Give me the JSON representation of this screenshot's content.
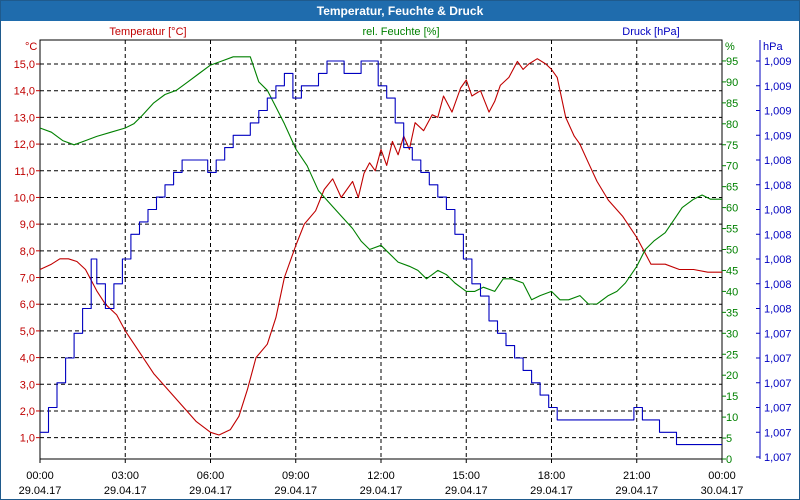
{
  "window": {
    "title": "Temperatur, Feuchte & Druck"
  },
  "chart_data": {
    "type": "line",
    "title": "Temperatur, Feuchte & Druck",
    "colors": {
      "temperature": "#c00000",
      "humidity": "#008000",
      "pressure": "#0000c0"
    },
    "axes": {
      "left": {
        "unit": "°C",
        "label": "Temperatur [°C]",
        "range": [
          0.2,
          15.9
        ],
        "ticks": [
          "1,0",
          "2,0",
          "3,0",
          "4,0",
          "5,0",
          "6,0",
          "7,0",
          "8,0",
          "9,0",
          "10,0",
          "11,0",
          "12,0",
          "13,0",
          "14,0",
          "15,0"
        ]
      },
      "right_humidity": {
        "unit": "%",
        "label": "rel. Feuchte [%]",
        "range": [
          0,
          100
        ],
        "ticks": [
          "0",
          "5",
          "10",
          "15",
          "20",
          "25",
          "30",
          "35",
          "40",
          "45",
          "50",
          "55",
          "60",
          "65",
          "70",
          "75",
          "80",
          "85",
          "90",
          "95"
        ]
      },
      "right_pressure": {
        "unit": "hPa",
        "label": "Druck [hPa]",
        "ticks": [
          "1,007",
          "1,007",
          "1,007",
          "1,007",
          "1,007",
          "1,007",
          "1,008",
          "1,008",
          "1,008",
          "1,008",
          "1,008",
          "1,008",
          "1,008",
          "1,009",
          "1,009",
          "1,009",
          "1,009"
        ]
      },
      "x": {
        "range": [
          0,
          24
        ],
        "ticks": [
          {
            "time": "00:00",
            "date": "29.04.17"
          },
          {
            "time": "03:00",
            "date": "29.04.17"
          },
          {
            "time": "06:00",
            "date": "29.04.17"
          },
          {
            "time": "09:00",
            "date": "29.04.17"
          },
          {
            "time": "12:00",
            "date": "29.04.17"
          },
          {
            "time": "15:00",
            "date": "29.04.17"
          },
          {
            "time": "18:00",
            "date": "29.04.17"
          },
          {
            "time": "21:00",
            "date": "29.04.17"
          },
          {
            "time": "00:00",
            "date": "30.04.17"
          }
        ]
      }
    },
    "series": [
      {
        "name": "Temperatur [°C]",
        "axis": "left",
        "color": "#c00000",
        "x": [
          0,
          0.4,
          0.7,
          1.0,
          1.3,
          1.6,
          2.0,
          2.3,
          2.7,
          3.0,
          3.5,
          4.0,
          4.5,
          5.0,
          5.5,
          6.0,
          6.3,
          6.7,
          7.0,
          7.3,
          7.6,
          8.0,
          8.3,
          8.6,
          9.0,
          9.3,
          9.7,
          10.0,
          10.3,
          10.6,
          11.0,
          11.2,
          11.4,
          11.6,
          11.8,
          12.0,
          12.2,
          12.4,
          12.6,
          12.8,
          13.0,
          13.2,
          13.5,
          13.8,
          14.0,
          14.2,
          14.5,
          14.8,
          15.0,
          15.2,
          15.5,
          15.8,
          16.0,
          16.2,
          16.5,
          16.8,
          17.0,
          17.2,
          17.5,
          17.8,
          18.0,
          18.2,
          18.5,
          18.8,
          19.0,
          19.3,
          19.6,
          20.0,
          20.5,
          21.0,
          21.5,
          22.0,
          22.5,
          23.0,
          23.5,
          24.0
        ],
        "y": [
          7.3,
          7.5,
          7.7,
          7.7,
          7.6,
          7.3,
          6.5,
          6.0,
          5.6,
          5.0,
          4.2,
          3.4,
          2.8,
          2.2,
          1.6,
          1.2,
          1.1,
          1.3,
          1.8,
          2.8,
          4.0,
          4.5,
          5.5,
          7.0,
          8.2,
          9.0,
          9.5,
          10.3,
          10.7,
          10.0,
          10.6,
          10.0,
          10.9,
          11.3,
          11.0,
          11.8,
          11.2,
          12.1,
          11.6,
          12.3,
          11.8,
          12.8,
          12.5,
          13.1,
          13.0,
          13.8,
          13.2,
          14.1,
          14.4,
          13.8,
          14.0,
          13.2,
          13.6,
          14.2,
          14.5,
          15.1,
          14.8,
          15.0,
          15.2,
          15.0,
          14.8,
          14.5,
          13.0,
          12.3,
          12.0,
          11.3,
          10.6,
          9.9,
          9.3,
          8.5,
          7.5,
          7.5,
          7.3,
          7.3,
          7.2,
          7.2
        ]
      },
      {
        "name": "rel. Feuchte [%]",
        "axis": "right_humidity",
        "color": "#008000",
        "x": [
          0,
          0.4,
          0.8,
          1.2,
          1.6,
          2.0,
          2.5,
          3.0,
          3.3,
          3.6,
          4.0,
          4.4,
          4.8,
          5.2,
          5.6,
          6.0,
          6.4,
          6.8,
          7.1,
          7.4,
          7.7,
          8.0,
          8.3,
          8.6,
          9.0,
          9.4,
          9.8,
          10.2,
          10.6,
          11.0,
          11.3,
          11.6,
          12.0,
          12.3,
          12.6,
          13.0,
          13.3,
          13.6,
          14.0,
          14.3,
          14.6,
          15.0,
          15.3,
          15.6,
          16.0,
          16.3,
          16.6,
          17.0,
          17.3,
          17.6,
          18.0,
          18.3,
          18.6,
          19.0,
          19.3,
          19.6,
          20.0,
          20.3,
          20.6,
          21.0,
          21.3,
          21.6,
          22.0,
          22.3,
          22.6,
          23.0,
          23.3,
          23.6,
          24.0
        ],
        "y": [
          79,
          78,
          76,
          75,
          76,
          77,
          78,
          79,
          80,
          82,
          85,
          87,
          88,
          90,
          92,
          94,
          95,
          96,
          96,
          96,
          90,
          88,
          84,
          80,
          74,
          70,
          64,
          61,
          58,
          55,
          52,
          50,
          51,
          49,
          47,
          46,
          45,
          43,
          45,
          44,
          42,
          40,
          40,
          41,
          40,
          43,
          43,
          42,
          38,
          39,
          40,
          38,
          38,
          39,
          37,
          37,
          39,
          40,
          42,
          46,
          50,
          52,
          54,
          57,
          60,
          62,
          63,
          62,
          62
        ]
      },
      {
        "name": "Druck [hPa]",
        "axis": "right_pressure",
        "color": "#0000c0",
        "x": [
          0,
          0.3,
          0.6,
          0.9,
          1.2,
          1.5,
          1.8,
          2.0,
          2.3,
          2.6,
          2.9,
          3.2,
          3.5,
          3.8,
          4.1,
          4.4,
          4.7,
          5.0,
          5.3,
          5.6,
          5.9,
          6.2,
          6.5,
          6.8,
          7.1,
          7.4,
          7.7,
          8.0,
          8.3,
          8.6,
          8.9,
          9.2,
          9.5,
          9.8,
          10.1,
          10.4,
          10.7,
          11.0,
          11.3,
          11.6,
          11.9,
          12.2,
          12.5,
          12.8,
          13.1,
          13.4,
          13.7,
          14.0,
          14.3,
          14.6,
          14.9,
          15.2,
          15.5,
          15.8,
          16.1,
          16.4,
          16.7,
          17.0,
          17.3,
          17.6,
          17.9,
          18.2,
          18.5,
          18.8,
          19.1,
          19.4,
          19.7,
          20.0,
          20.3,
          20.6,
          20.9,
          21.2,
          21.5,
          21.8,
          22.1,
          22.4,
          22.7,
          23.0,
          23.3,
          23.6,
          24.0
        ],
        "y": [
          1.0,
          2.0,
          3.0,
          4.0,
          5.0,
          6.0,
          8.0,
          7.0,
          6.0,
          7.0,
          8.0,
          9.0,
          9.5,
          10.0,
          10.5,
          11.0,
          11.5,
          12.0,
          12.0,
          12.0,
          11.5,
          12.0,
          12.5,
          13.0,
          13.0,
          13.5,
          14.0,
          14.5,
          15.0,
          15.5,
          14.5,
          15.0,
          15.0,
          15.5,
          16.0,
          16.0,
          15.5,
          15.5,
          16.0,
          16.0,
          15.0,
          14.5,
          13.5,
          12.5,
          12.0,
          11.5,
          11.0,
          10.5,
          10.0,
          9.0,
          8.0,
          7.0,
          6.5,
          5.5,
          5.0,
          4.5,
          4.0,
          3.5,
          3.0,
          2.5,
          2.0,
          1.5,
          1.5,
          1.5,
          1.5,
          1.5,
          1.5,
          1.5,
          1.5,
          1.5,
          2.0,
          1.5,
          1.5,
          1.0,
          1.0,
          0.5,
          0.5,
          0.5,
          0.5,
          0.5,
          0.5
        ]
      }
    ]
  }
}
